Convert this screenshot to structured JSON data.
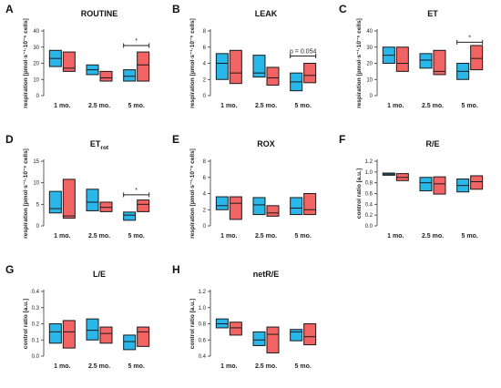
{
  "colors": {
    "series1": "#29b6e8",
    "series2": "#f26463",
    "outline": "#1a1a1a"
  },
  "chart_data": [
    {
      "type": "boxplot",
      "panel": "A",
      "title": "ROUTINE",
      "ylabel": "respiration [pmol·s⁻¹·10⁻⁶ cells]",
      "ylim": [
        0,
        40
      ],
      "yticks": [
        "0",
        "10",
        "20",
        "30",
        "40"
      ],
      "categories": [
        "1 mo.",
        "2.5 mo.",
        "5 mo."
      ],
      "series": [
        {
          "values": [
            [
              18,
              23,
              28
            ],
            [
              13,
              16,
              19
            ],
            [
              9,
              12,
              16
            ]
          ]
        },
        {
          "values": [
            [
              15,
              17,
              27
            ],
            [
              9,
              11,
              15
            ],
            [
              9,
              19,
              27
            ]
          ]
        }
      ],
      "annotation": {
        "category": 2,
        "text": "*",
        "y": 31
      }
    },
    {
      "type": "boxplot",
      "panel": "B",
      "title": "LEAK",
      "ylabel": "respiration [pmol·s⁻¹·10⁻⁶ cells]",
      "ylim": [
        0,
        8
      ],
      "yticks": [
        "0",
        "2",
        "4",
        "6",
        "8"
      ],
      "categories": [
        "1 mo.",
        "2.5 mo.",
        "5 mo."
      ],
      "series": [
        {
          "values": [
            [
              2,
              4,
              5.2
            ],
            [
              2.3,
              2.8,
              5
            ],
            [
              0.6,
              1.7,
              2.8
            ]
          ]
        },
        {
          "values": [
            [
              1.5,
              2.8,
              5.6
            ],
            [
              1.3,
              2.2,
              3.5
            ],
            [
              1.6,
              2.5,
              4
            ]
          ]
        }
      ],
      "annotation": {
        "category": 2,
        "text": "p = 0.054",
        "y": 4.9
      }
    },
    {
      "type": "boxplot",
      "panel": "C",
      "title": "ET",
      "ylabel": "respiration [pmol·s⁻¹·10⁻⁶ cells]",
      "ylim": [
        0,
        40
      ],
      "yticks": [
        "0",
        "10",
        "20",
        "30",
        "40"
      ],
      "categories": [
        "1 mo.",
        "2.5 mo.",
        "5 mo."
      ],
      "series": [
        {
          "values": [
            [
              20,
              25,
              30
            ],
            [
              17,
              22,
              26
            ],
            [
              10,
              15,
              20
            ]
          ]
        },
        {
          "values": [
            [
              15,
              20,
              30
            ],
            [
              13,
              15,
              28
            ],
            [
              16,
              23,
              31
            ]
          ]
        }
      ],
      "annotation": {
        "category": 2,
        "text": "*",
        "y": 33
      }
    },
    {
      "type": "boxplot",
      "panel": "D",
      "title": "ET",
      "title_sub": "rot",
      "ylabel": "respiration [pmol·s⁻¹·10⁻⁶ cells]",
      "ylim": [
        0,
        15
      ],
      "yticks": [
        "0",
        "5",
        "10",
        "15"
      ],
      "categories": [
        "1 mo.",
        "2.5 mo.",
        "5 mo."
      ],
      "series": [
        {
          "values": [
            [
              3,
              4,
              8
            ],
            [
              3.5,
              5.5,
              8.5
            ],
            [
              1.3,
              2.5,
              3.2
            ]
          ]
        },
        {
          "values": [
            [
              1.8,
              2.3,
              10.8
            ],
            [
              3.3,
              4.3,
              5.5
            ],
            [
              3.3,
              5,
              6
            ]
          ]
        }
      ],
      "annotation": {
        "category": 2,
        "text": "*",
        "y": 7.2
      }
    },
    {
      "type": "boxplot",
      "panel": "E",
      "title": "ROX",
      "ylabel": "respiration [pmol·s⁻¹·10⁻⁶ cells]",
      "ylim": [
        0,
        8
      ],
      "yticks": [
        "0",
        "2",
        "4",
        "6",
        "8"
      ],
      "categories": [
        "1 mo.",
        "2.5 mo.",
        "5 mo."
      ],
      "series": [
        {
          "values": [
            [
              2,
              2.5,
              3.6
            ],
            [
              1.4,
              2.6,
              3.5
            ],
            [
              1.4,
              2.2,
              3.5
            ]
          ]
        },
        {
          "values": [
            [
              0.8,
              2.8,
              3.6
            ],
            [
              1.2,
              1.6,
              2.5
            ],
            [
              1.4,
              2,
              4
            ]
          ]
        }
      ]
    },
    {
      "type": "boxplot",
      "panel": "F",
      "title": "R/E",
      "ylabel": "control ratio [a.u.]",
      "ylim": [
        0.0,
        1.2
      ],
      "yticks": [
        "0.0",
        "0.2",
        "0.4",
        "0.6",
        "0.8",
        "1.0",
        "1.2"
      ],
      "categories": [
        "1 mo.",
        "2.5 mo.",
        "5 mo."
      ],
      "series": [
        {
          "values": [
            [
              0.94,
              0.96,
              0.98
            ],
            [
              0.65,
              0.8,
              0.9
            ],
            [
              0.63,
              0.75,
              0.87
            ]
          ]
        },
        {
          "values": [
            [
              0.84,
              0.9,
              0.97
            ],
            [
              0.59,
              0.78,
              0.91
            ],
            [
              0.68,
              0.82,
              0.93
            ]
          ]
        }
      ]
    },
    {
      "type": "boxplot",
      "panel": "G",
      "title": "L/E",
      "ylabel": "control ratio [a.u.]",
      "ylim": [
        0.0,
        0.4
      ],
      "yticks": [
        "0.0",
        "0.1",
        "0.2",
        "0.3",
        "0.4"
      ],
      "categories": [
        "1 mo.",
        "2.5 mo.",
        "5 mo."
      ],
      "series": [
        {
          "values": [
            [
              0.08,
              0.15,
              0.2
            ],
            [
              0.1,
              0.16,
              0.23
            ],
            [
              0.04,
              0.09,
              0.13
            ]
          ]
        },
        {
          "values": [
            [
              0.05,
              0.15,
              0.22
            ],
            [
              0.08,
              0.14,
              0.18
            ],
            [
              0.06,
              0.15,
              0.18
            ]
          ]
        }
      ]
    },
    {
      "type": "boxplot",
      "panel": "H",
      "title": "netR/E",
      "ylabel": "control ratio [a.u.]",
      "ylim": [
        0.4,
        1.2
      ],
      "yticks": [
        "0.4",
        "0.6",
        "0.8",
        "1.0",
        "1.2"
      ],
      "categories": [
        "1 mo.",
        "2.5 mo.",
        "5 mo."
      ],
      "series": [
        {
          "values": [
            [
              0.75,
              0.8,
              0.86
            ],
            [
              0.53,
              0.6,
              0.7
            ],
            [
              0.59,
              0.7,
              0.73
            ]
          ]
        },
        {
          "values": [
            [
              0.66,
              0.75,
              0.82
            ],
            [
              0.44,
              0.67,
              0.76
            ],
            [
              0.54,
              0.64,
              0.8
            ]
          ]
        }
      ]
    }
  ]
}
